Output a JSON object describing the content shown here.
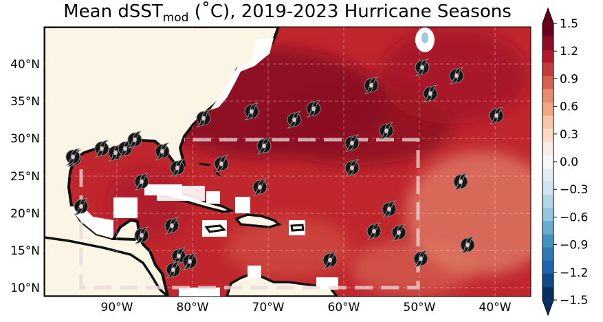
{
  "title": {
    "prefix": "Mean dSST",
    "subscript": "mod",
    "suffix": " (˚C), 2019-2023 Hurricane Seasons"
  },
  "colorbar": {
    "ticks": [
      "1.5",
      "1.2",
      "0.9",
      "0.6",
      "0.3",
      "0.0",
      "−0.3",
      "−0.6",
      "−0.9",
      "−1.2",
      "−1.5"
    ],
    "colors": [
      "#67001f",
      "#8f0d24",
      "#b2182b",
      "#c43c3c",
      "#d6604d",
      "#e98b6f",
      "#f4a582",
      "#f8c6a8",
      "#fddbc7",
      "#faede6",
      "#f7f7f7",
      "#e3eef4",
      "#d1e5f0",
      "#b3d5e8",
      "#92c5de",
      "#6aacd0",
      "#4393c3",
      "#2f79b5",
      "#2166ac",
      "#104a86",
      "#053061"
    ]
  },
  "lon_labels": [
    "90°W",
    "80°W",
    "70°W",
    "60°W",
    "50°W",
    "40°W"
  ],
  "lat_labels": [
    "40°N",
    "35°N",
    "30°N",
    "25°N",
    "20°N",
    "15°N",
    "10°N"
  ],
  "colors": {
    "land": "#fbf5e6",
    "ocean_base": "#c0272d",
    "dashed_box": "#e8d8d8"
  },
  "icon_name": "hurricane-icon"
}
